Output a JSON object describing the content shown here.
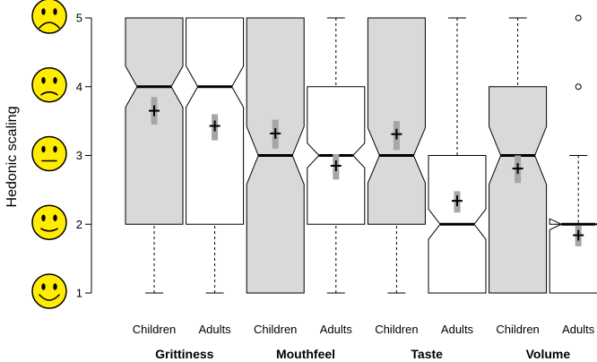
{
  "chart_data": {
    "type": "boxplot",
    "title": "",
    "ylabel": "Hedonic scaling",
    "ylim": [
      1,
      5
    ],
    "yticks": [
      "1",
      "2",
      "3",
      "4",
      "5"
    ],
    "y_axis_icons": [
      "very-happy-face-icon",
      "happy-face-icon",
      "neutral-face-icon",
      "unhappy-face-icon",
      "very-unhappy-face-icon"
    ],
    "groups": [
      "Grittiness",
      "Mouthfeel",
      "Taste",
      "Volume"
    ],
    "colors": {
      "Children": "#d9d9d9",
      "Adults": "#ffffff",
      "mean_bar": "#a6a6a6",
      "icon_fill": "#ffec00"
    },
    "boxes": [
      {
        "group": "Grittiness",
        "category": "Children",
        "min": 1,
        "q1": 2,
        "median": 4,
        "q3": 5,
        "max": 5,
        "notch_low": 3.7,
        "notch_high": 4.3,
        "mean": 3.65,
        "mean_ci": [
          3.45,
          3.85
        ],
        "outliers": []
      },
      {
        "group": "Grittiness",
        "category": "Adults",
        "min": 1,
        "q1": 2,
        "median": 4,
        "q3": 5,
        "max": 5,
        "notch_low": 3.7,
        "notch_high": 4.3,
        "mean": 3.43,
        "mean_ci": [
          3.22,
          3.6
        ],
        "outliers": []
      },
      {
        "group": "Mouthfeel",
        "category": "Children",
        "min": 1,
        "q1": 1,
        "median": 3,
        "q3": 5,
        "max": 5,
        "notch_low": 2.58,
        "notch_high": 3.42,
        "mean": 3.32,
        "mean_ci": [
          3.1,
          3.52
        ],
        "outliers": []
      },
      {
        "group": "Mouthfeel",
        "category": "Adults",
        "min": 1,
        "q1": 2,
        "median": 3,
        "q3": 4,
        "max": 5,
        "notch_low": 2.82,
        "notch_high": 3.18,
        "mean": 2.85,
        "mean_ci": [
          2.65,
          3.02
        ],
        "outliers": []
      },
      {
        "group": "Taste",
        "category": "Children",
        "min": 1,
        "q1": 2,
        "median": 3,
        "q3": 5,
        "max": 5,
        "notch_low": 2.6,
        "notch_high": 3.4,
        "mean": 3.31,
        "mean_ci": [
          3.08,
          3.5
        ],
        "outliers": []
      },
      {
        "group": "Taste",
        "category": "Adults",
        "min": 1,
        "q1": 1,
        "median": 2,
        "q3": 3,
        "max": 5,
        "notch_low": 1.78,
        "notch_high": 2.22,
        "mean": 2.34,
        "mean_ci": [
          2.17,
          2.48
        ],
        "outliers": []
      },
      {
        "group": "Volume",
        "category": "Children",
        "min": 1,
        "q1": 1,
        "median": 3,
        "q3": 4,
        "max": 5,
        "notch_low": 2.58,
        "notch_high": 3.42,
        "mean": 2.81,
        "mean_ci": [
          2.6,
          3.0
        ],
        "outliers": []
      },
      {
        "group": "Volume",
        "category": "Adults",
        "min": 1,
        "q1": 1,
        "median": 2,
        "q3": 2,
        "max": 3,
        "notch_low": 1.92,
        "notch_high": 2.08,
        "mean": 1.84,
        "mean_ci": [
          1.68,
          1.98
        ],
        "outliers": [
          4,
          5
        ]
      }
    ]
  }
}
